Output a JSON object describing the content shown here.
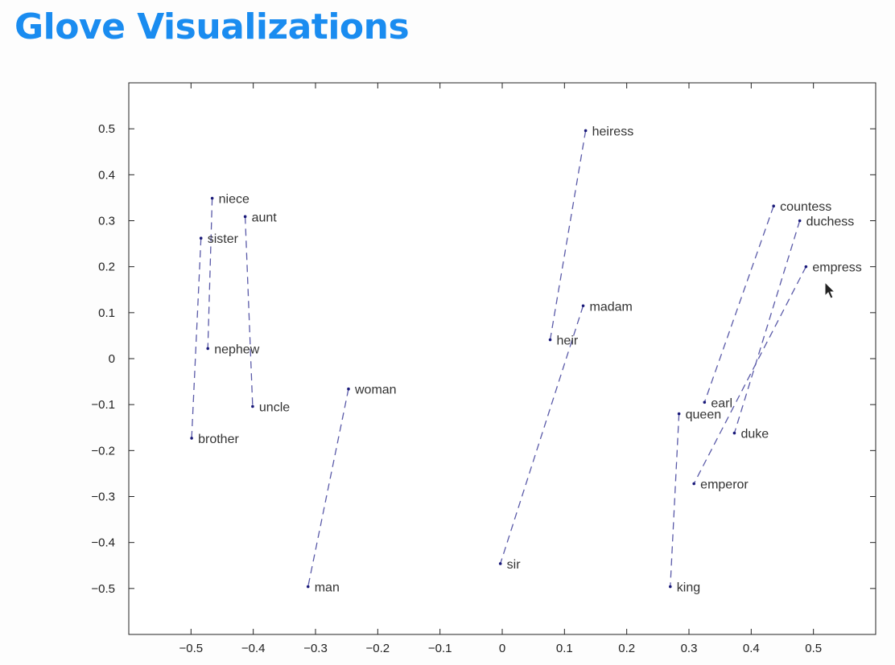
{
  "slide": {
    "title": "Glove Visualizations"
  },
  "colors": {
    "title": "#1a8cf0",
    "points": "#1a1a7a",
    "lines": "#5a5aa8",
    "axes": "#222222"
  },
  "chart_data": {
    "type": "scatter",
    "title": "",
    "xlabel": "",
    "ylabel": "",
    "xlim": [
      -0.6,
      0.6
    ],
    "ylim": [
      -0.6,
      0.6
    ],
    "xticks": [
      -0.5,
      -0.4,
      -0.3,
      -0.2,
      -0.1,
      0,
      0.1,
      0.2,
      0.3,
      0.4,
      0.5
    ],
    "yticks": [
      0.5,
      0.4,
      0.3,
      0.2,
      0.1,
      0,
      -0.1,
      -0.2,
      -0.3,
      -0.4,
      -0.5
    ],
    "xtick_labels": [
      "−0.5",
      "−0.4",
      "−0.3",
      "−0.2",
      "−0.1",
      "0",
      "0.1",
      "0.2",
      "0.3",
      "0.4",
      "0.5"
    ],
    "ytick_labels": [
      "0.5",
      "0.4",
      "0.3",
      "0.2",
      "0.1",
      "0",
      "−0.1",
      "−0.2",
      "−0.3",
      "−0.4",
      "−0.5"
    ],
    "grid": false,
    "points": [
      {
        "label": "niece",
        "x": -0.466,
        "y": 0.349
      },
      {
        "label": "aunt",
        "x": -0.413,
        "y": 0.309
      },
      {
        "label": "sister",
        "x": -0.484,
        "y": 0.262
      },
      {
        "label": "nephew",
        "x": -0.473,
        "y": 0.022
      },
      {
        "label": "uncle",
        "x": -0.401,
        "y": -0.104
      },
      {
        "label": "brother",
        "x": -0.499,
        "y": -0.173
      },
      {
        "label": "woman",
        "x": -0.247,
        "y": -0.066
      },
      {
        "label": "man",
        "x": -0.312,
        "y": -0.496
      },
      {
        "label": "heiress",
        "x": 0.134,
        "y": 0.496
      },
      {
        "label": "madam",
        "x": 0.13,
        "y": 0.115
      },
      {
        "label": "heir",
        "x": 0.077,
        "y": 0.041
      },
      {
        "label": "sir",
        "x": -0.003,
        "y": -0.446
      },
      {
        "label": "countess",
        "x": 0.436,
        "y": 0.332
      },
      {
        "label": "duchess",
        "x": 0.478,
        "y": 0.3
      },
      {
        "label": "empress",
        "x": 0.488,
        "y": 0.2
      },
      {
        "label": "earl",
        "x": 0.325,
        "y": -0.095
      },
      {
        "label": "queen",
        "x": 0.284,
        "y": -0.12
      },
      {
        "label": "duke",
        "x": 0.373,
        "y": -0.162
      },
      {
        "label": "emperor",
        "x": 0.308,
        "y": -0.272
      },
      {
        "label": "king",
        "x": 0.27,
        "y": -0.496
      }
    ],
    "pairs": [
      [
        "niece",
        "nephew"
      ],
      [
        "aunt",
        "uncle"
      ],
      [
        "sister",
        "brother"
      ],
      [
        "woman",
        "man"
      ],
      [
        "heiress",
        "heir"
      ],
      [
        "madam",
        "sir"
      ],
      [
        "countess",
        "earl"
      ],
      [
        "duchess",
        "duke"
      ],
      [
        "empress",
        "emperor"
      ],
      [
        "queen",
        "king"
      ]
    ]
  }
}
